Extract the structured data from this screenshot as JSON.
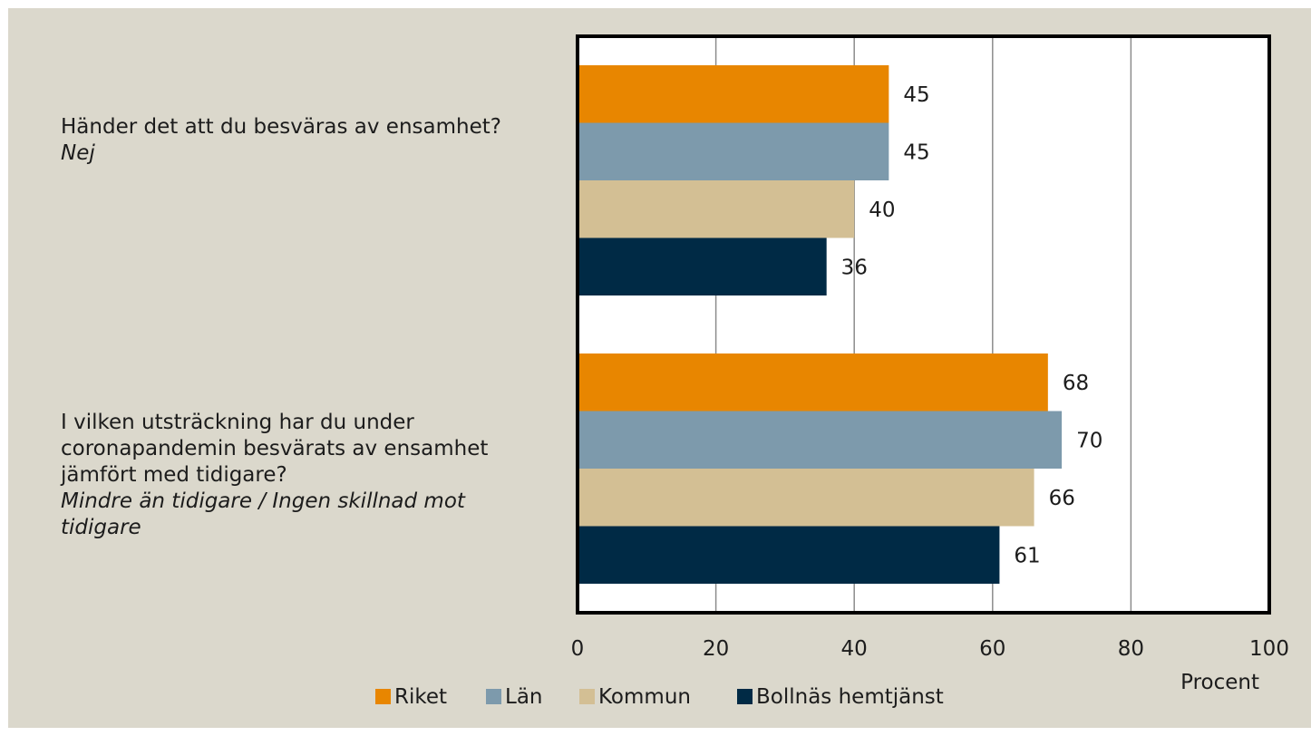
{
  "questions": [
    {
      "text": "Händer det att du besväras av ensamhet?",
      "answer": "Nej"
    },
    {
      "text": "I vilken utsträckning har du under coronapandemin besvärats av ensamhet jämfört med tidigare?",
      "answer": "Mindre än tidigare / Ingen skillnad mot tidigare"
    }
  ],
  "chart_data": {
    "type": "bar",
    "orientation": "horizontal",
    "categories": [
      "Händer det att du besväras av ensamhet? Nej",
      "I vilken utsträckning har du under coronapandemin besvärats av ensamhet jämfört med tidigare? Mindre än tidigare / Ingen skillnad mot tidigare"
    ],
    "series": [
      {
        "name": "Riket",
        "color": "#e88600",
        "values": [
          45,
          68
        ]
      },
      {
        "name": "Län",
        "color": "#7d9aac",
        "values": [
          45,
          70
        ]
      },
      {
        "name": "Kommun",
        "color": "#d3bf94",
        "values": [
          40,
          66
        ]
      },
      {
        "name": "Bollnäs hemtjänst",
        "color": "#002a45",
        "values": [
          36,
          61
        ]
      }
    ],
    "xlabel": "Procent",
    "xlim": [
      0,
      100
    ],
    "xticks": [
      0,
      20,
      40,
      60,
      80,
      100
    ],
    "grid": true,
    "data_labels": true,
    "legend_position": "bottom",
    "plot_background": "#ffffff",
    "page_background": "#dbd8cc"
  }
}
